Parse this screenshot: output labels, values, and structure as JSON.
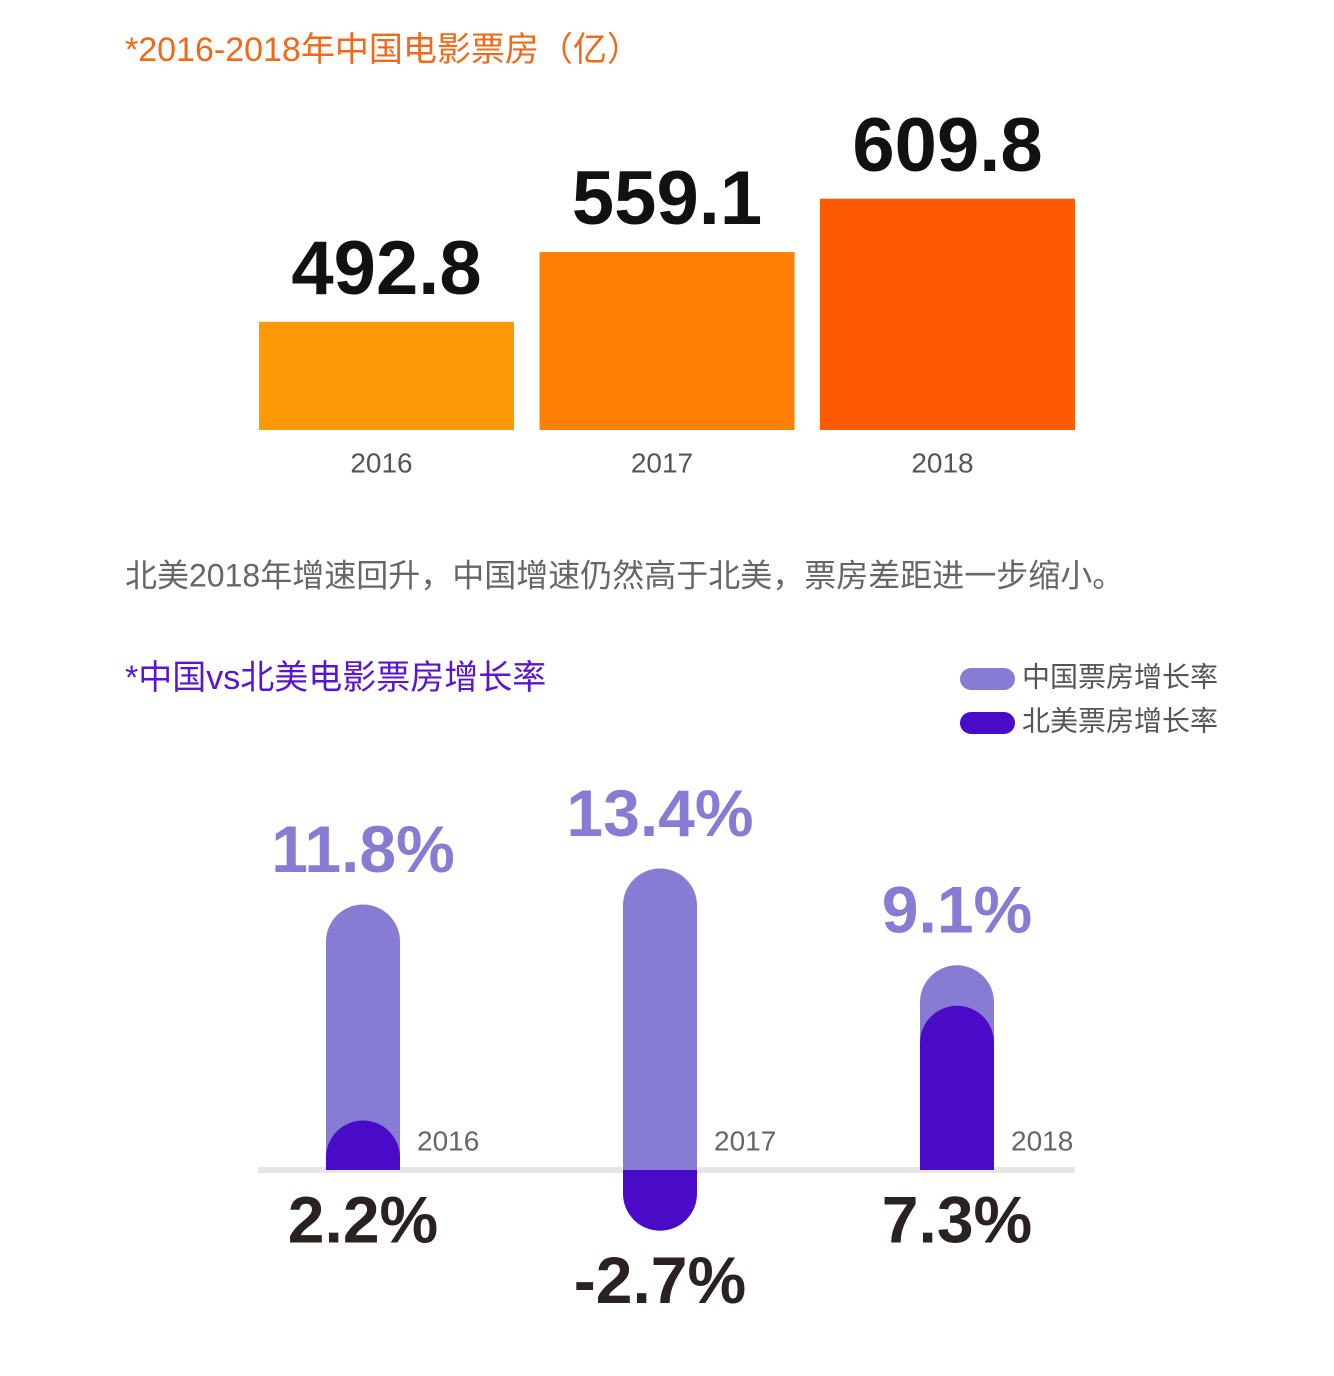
{
  "chart_data": [
    {
      "type": "bar",
      "title": "*2016-2018年中国电影票房（亿）",
      "categories": [
        "2016",
        "2017",
        "2018"
      ],
      "values": [
        492.8,
        559.1,
        609.8
      ],
      "colors": [
        "#fd9a06",
        "#fd7f06",
        "#fe5a01"
      ],
      "ylim": [
        390,
        620
      ]
    },
    {
      "type": "bar",
      "title": "*中国vs北美电影票房增长率",
      "categories": [
        "2016",
        "2017",
        "2018"
      ],
      "series": [
        {
          "name": "中国票房增长率",
          "color": "#877cd4",
          "values": [
            11.8,
            13.4,
            9.1
          ],
          "value_labels": [
            "11.8%",
            "13.4%",
            "9.1%"
          ]
        },
        {
          "name": "北美票房增长率",
          "color": "#4a0bc9",
          "values": [
            2.2,
            -2.7,
            7.3
          ],
          "value_labels": [
            "2.2%",
            "-2.7%",
            "7.3%"
          ]
        }
      ],
      "ylim": [
        -4,
        14
      ],
      "legend": "upper right"
    }
  ],
  "text": "北美2018年增速回升，中国增速仍然高于北美，票房差距进一步缩小。"
}
